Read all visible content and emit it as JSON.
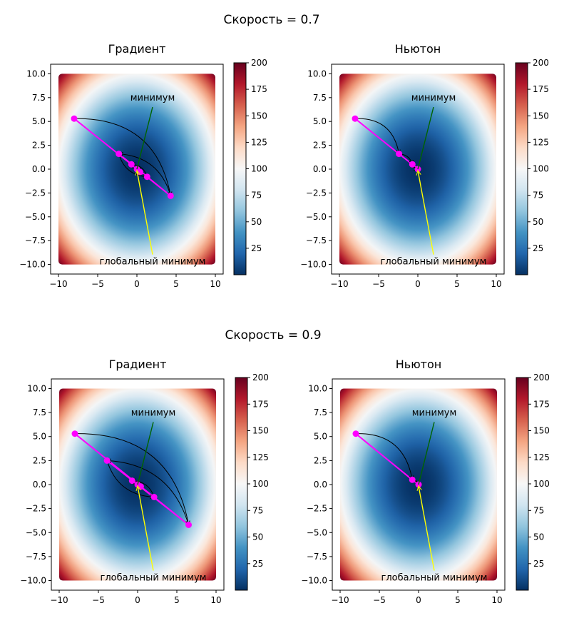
{
  "figure": {
    "sections": [
      {
        "title": "Скорость = 0.7",
        "panels": [
          {
            "title": "Градиент"
          },
          {
            "title": "Ньютон"
          }
        ]
      },
      {
        "title": "Скорость = 0.9",
        "panels": [
          {
            "title": "Градиент"
          },
          {
            "title": "Ньютон"
          }
        ]
      }
    ]
  },
  "chart_data": [
    {
      "type": "heatmap",
      "section_title": "Скорость = 0.7",
      "title": "Градиент",
      "xlim": [
        -11,
        11
      ],
      "ylim": [
        -11,
        11
      ],
      "xticks": [
        -10,
        -5,
        0,
        5,
        10
      ],
      "yticks": [
        -10.0,
        -7.5,
        -5.0,
        -2.5,
        0.0,
        2.5,
        5.0,
        7.5,
        10.0
      ],
      "surface": {
        "x_range": [
          -10,
          10
        ],
        "y_range": [
          -10,
          10
        ],
        "colormap": "RdBu_r",
        "vmin": 0,
        "vmax": 200
      },
      "colorbar_ticks": [
        25,
        50,
        75,
        100,
        125,
        150,
        175,
        200
      ],
      "path": [
        [
          -8,
          5.3
        ],
        [
          4.3,
          -2.8
        ],
        [
          -2.3,
          1.6
        ],
        [
          1.3,
          -0.8
        ],
        [
          -0.7,
          0.5
        ],
        [
          0.4,
          -0.3
        ],
        [
          0,
          0
        ]
      ],
      "path_color": "#ff00ff",
      "arrow_color": "#000000",
      "annotations": [
        {
          "text": "минимум",
          "xy": [
            0,
            0
          ],
          "xytext": [
            2,
            6.5
          ],
          "color": "#006400"
        },
        {
          "text": "глобальный минимум",
          "xy": [
            0,
            0
          ],
          "xytext": [
            2,
            -10
          ],
          "color": "#ffff00"
        }
      ]
    },
    {
      "type": "heatmap",
      "section_title": "Скорость = 0.7",
      "title": "Ньютон",
      "xlim": [
        -11,
        11
      ],
      "ylim": [
        -11,
        11
      ],
      "xticks": [
        -10,
        -5,
        0,
        5,
        10
      ],
      "yticks": [
        -10.0,
        -7.5,
        -5.0,
        -2.5,
        0.0,
        2.5,
        5.0,
        7.5,
        10.0
      ],
      "surface": {
        "x_range": [
          -10,
          10
        ],
        "y_range": [
          -10,
          10
        ],
        "colormap": "RdBu_r",
        "vmin": 0,
        "vmax": 200
      },
      "colorbar_ticks": [
        25,
        50,
        75,
        100,
        125,
        150,
        175,
        200
      ],
      "path": [
        [
          -8,
          5.3
        ],
        [
          -2.4,
          1.6
        ],
        [
          -0.7,
          0.5
        ],
        [
          0,
          0
        ]
      ],
      "path_color": "#ff00ff",
      "arrow_color": "#000000",
      "annotations": [
        {
          "text": "минимум",
          "xy": [
            0,
            0
          ],
          "xytext": [
            2,
            6.5
          ],
          "color": "#006400"
        },
        {
          "text": "глобальный минимум",
          "xy": [
            0,
            0
          ],
          "xytext": [
            2,
            -10
          ],
          "color": "#ffff00"
        }
      ]
    },
    {
      "type": "heatmap",
      "section_title": "Скорость = 0.9",
      "title": "Градиент",
      "xlim": [
        -11,
        11
      ],
      "ylim": [
        -11,
        11
      ],
      "xticks": [
        -10,
        -5,
        0,
        5,
        10
      ],
      "yticks": [
        -10.0,
        -7.5,
        -5.0,
        -2.5,
        0.0,
        2.5,
        5.0,
        7.5,
        10.0
      ],
      "surface": {
        "x_range": [
          -10,
          10
        ],
        "y_range": [
          -10,
          10
        ],
        "colormap": "RdBu_r",
        "vmin": 0,
        "vmax": 200
      },
      "colorbar_ticks": [
        25,
        50,
        75,
        100,
        125,
        150,
        175,
        200
      ],
      "path": [
        [
          -8,
          5.3
        ],
        [
          6.5,
          -4.2
        ],
        [
          -3.9,
          2.5
        ],
        [
          2.1,
          -1.3
        ],
        [
          -0.7,
          0.4
        ],
        [
          0.4,
          -0.2
        ],
        [
          0,
          0
        ]
      ],
      "path_color": "#ff00ff",
      "arrow_color": "#000000",
      "annotations": [
        {
          "text": "минимум",
          "xy": [
            0,
            0
          ],
          "xytext": [
            2,
            6.5
          ],
          "color": "#006400"
        },
        {
          "text": "глобальный минимум",
          "xy": [
            0,
            0
          ],
          "xytext": [
            2,
            -10
          ],
          "color": "#ffff00"
        }
      ]
    },
    {
      "type": "heatmap",
      "section_title": "Скорость = 0.9",
      "title": "Ньютон",
      "xlim": [
        -11,
        11
      ],
      "ylim": [
        -11,
        11
      ],
      "xticks": [
        -10,
        -5,
        0,
        5,
        10
      ],
      "yticks": [
        -10.0,
        -7.5,
        -5.0,
        -2.5,
        0.0,
        2.5,
        5.0,
        7.5,
        10.0
      ],
      "surface": {
        "x_range": [
          -10,
          10
        ],
        "y_range": [
          -10,
          10
        ],
        "colormap": "RdBu_r",
        "vmin": 0,
        "vmax": 200
      },
      "colorbar_ticks": [
        25,
        50,
        75,
        100,
        125,
        150,
        175,
        200
      ],
      "path": [
        [
          -8,
          5.3
        ],
        [
          -0.8,
          0.5
        ],
        [
          0,
          0
        ]
      ],
      "path_color": "#ff00ff",
      "arrow_color": "#000000",
      "annotations": [
        {
          "text": "минимум",
          "xy": [
            0,
            0
          ],
          "xytext": [
            2,
            6.5
          ],
          "color": "#006400"
        },
        {
          "text": "глобальный минимум",
          "xy": [
            0,
            0
          ],
          "xytext": [
            2,
            -10
          ],
          "color": "#ffff00"
        }
      ]
    }
  ]
}
